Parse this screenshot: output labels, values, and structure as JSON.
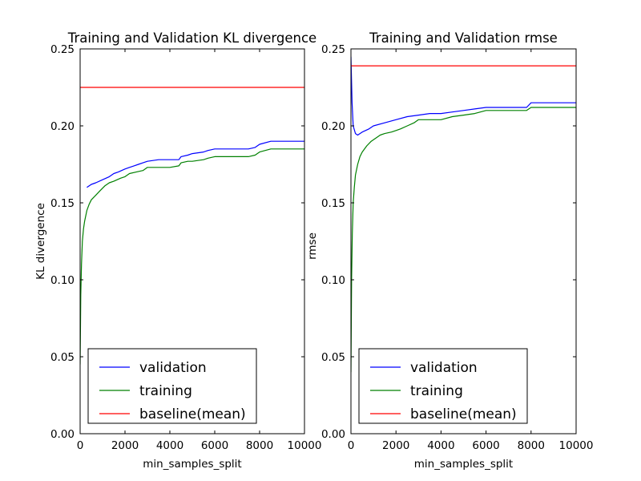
{
  "chart_data": [
    {
      "type": "line",
      "title": "Training and Validation KL divergence",
      "xlabel": "min_samples_split",
      "ylabel": "KL divergence",
      "xlim": [
        0,
        10000
      ],
      "ylim": [
        0.0,
        0.25
      ],
      "xticks": [
        0,
        2000,
        4000,
        6000,
        8000,
        10000
      ],
      "xtick_labels": [
        "0",
        "2000",
        "4000",
        "6000",
        "8000",
        "10000"
      ],
      "yticks": [
        0.0,
        0.05,
        0.1,
        0.15,
        0.2,
        0.25
      ],
      "ytick_labels": [
        "0.00",
        "0.05",
        "0.10",
        "0.15",
        "0.20",
        "0.25"
      ],
      "grid": false,
      "legend": "lower-left",
      "series": [
        {
          "name": "validation",
          "color": "#0000ff",
          "x": [
            300,
            500,
            700,
            1000,
            1300,
            1500,
            1700,
            2000,
            2200,
            2400,
            2600,
            2800,
            3000,
            3500,
            4000,
            4400,
            4500,
            4800,
            5000,
            5500,
            5700,
            6000,
            6500,
            7000,
            7500,
            7800,
            8000,
            8500,
            9000,
            9500,
            10000
          ],
          "values": [
            0.16,
            0.162,
            0.163,
            0.165,
            0.167,
            0.169,
            0.17,
            0.172,
            0.173,
            0.174,
            0.175,
            0.176,
            0.177,
            0.178,
            0.178,
            0.178,
            0.18,
            0.181,
            0.182,
            0.183,
            0.184,
            0.185,
            0.185,
            0.185,
            0.185,
            0.186,
            0.188,
            0.19,
            0.19,
            0.19,
            0.19
          ]
        },
        {
          "name": "training",
          "color": "#008000",
          "x": [
            0,
            30,
            60,
            100,
            150,
            200,
            300,
            400,
            500,
            700,
            900,
            1100,
            1300,
            1500,
            1800,
            2000,
            2200,
            2500,
            2800,
            3000,
            3500,
            4000,
            4400,
            4500,
            4800,
            5000,
            5500,
            5700,
            6000,
            6500,
            7000,
            7500,
            7800,
            8000,
            8500,
            9000,
            9500,
            10000
          ],
          "values": [
            0.045,
            0.09,
            0.11,
            0.125,
            0.133,
            0.138,
            0.145,
            0.149,
            0.152,
            0.155,
            0.158,
            0.161,
            0.163,
            0.164,
            0.166,
            0.167,
            0.169,
            0.17,
            0.171,
            0.173,
            0.173,
            0.173,
            0.174,
            0.176,
            0.177,
            0.177,
            0.178,
            0.179,
            0.18,
            0.18,
            0.18,
            0.18,
            0.181,
            0.183,
            0.185,
            0.185,
            0.185,
            0.185
          ]
        },
        {
          "name": "baseline(mean)",
          "color": "#ff0000",
          "x": [
            0,
            10000
          ],
          "values": [
            0.225,
            0.225
          ]
        }
      ]
    },
    {
      "type": "line",
      "title": "Training and Validation rmse",
      "xlabel": "min_samples_split",
      "ylabel": "rmse",
      "xlim": [
        0,
        10000
      ],
      "ylim": [
        0.0,
        0.25
      ],
      "xticks": [
        0,
        2000,
        4000,
        6000,
        8000,
        10000
      ],
      "xtick_labels": [
        "0",
        "2000",
        "4000",
        "6000",
        "8000",
        "10000"
      ],
      "yticks": [
        0.0,
        0.05,
        0.1,
        0.15,
        0.2,
        0.25
      ],
      "ytick_labels": [
        "0.00",
        "0.05",
        "0.10",
        "0.15",
        "0.20",
        "0.25"
      ],
      "grid": false,
      "legend": "lower-left",
      "series": [
        {
          "name": "validation",
          "color": "#0000ff",
          "x": [
            0,
            50,
            100,
            200,
            300,
            500,
            800,
            1000,
            1500,
            2000,
            2500,
            3000,
            3500,
            4000,
            4500,
            5000,
            5500,
            6000,
            7000,
            7800,
            8000,
            9000,
            10000
          ],
          "values": [
            0.245,
            0.215,
            0.2,
            0.195,
            0.194,
            0.196,
            0.198,
            0.2,
            0.202,
            0.204,
            0.206,
            0.207,
            0.208,
            0.208,
            0.209,
            0.21,
            0.211,
            0.212,
            0.212,
            0.212,
            0.215,
            0.215,
            0.215
          ]
        },
        {
          "name": "training",
          "color": "#008000",
          "x": [
            0,
            30,
            60,
            100,
            150,
            200,
            300,
            400,
            500,
            700,
            900,
            1100,
            1300,
            1500,
            1800,
            2000,
            2200,
            2500,
            2800,
            3000,
            3500,
            4000,
            4500,
            5000,
            5500,
            6000,
            7000,
            7800,
            8000,
            9000,
            10000
          ],
          "values": [
            0.04,
            0.1,
            0.13,
            0.15,
            0.16,
            0.168,
            0.175,
            0.18,
            0.183,
            0.187,
            0.19,
            0.192,
            0.194,
            0.195,
            0.196,
            0.197,
            0.198,
            0.2,
            0.202,
            0.204,
            0.204,
            0.204,
            0.206,
            0.207,
            0.208,
            0.21,
            0.21,
            0.21,
            0.212,
            0.212,
            0.212
          ]
        },
        {
          "name": "baseline(mean)",
          "color": "#ff0000",
          "x": [
            0,
            10000
          ],
          "values": [
            0.239,
            0.239
          ]
        }
      ]
    }
  ]
}
